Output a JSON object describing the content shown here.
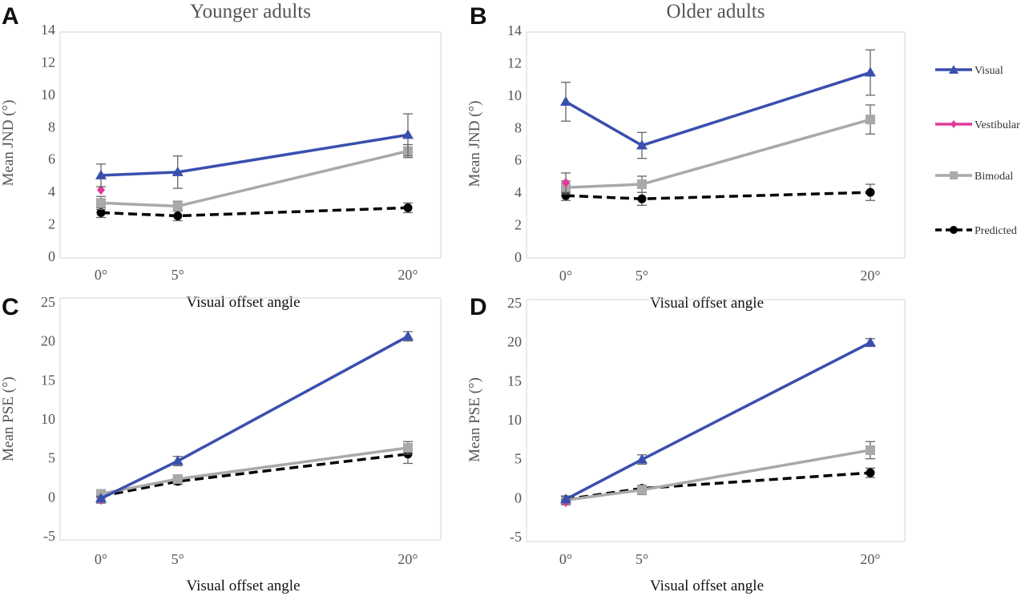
{
  "figure": {
    "legend": [
      {
        "name": "Visual",
        "color": "#3a4fae",
        "marker": "triangle",
        "dash": "solid"
      },
      {
        "name": "Vestibular",
        "color": "#e0399a",
        "marker": "diamond",
        "dash": "solid"
      },
      {
        "name": "Bimodal",
        "color": "#a9a9a9",
        "marker": "square",
        "dash": "solid"
      },
      {
        "name": "Predicted",
        "color": "#000000",
        "marker": "circle",
        "dash": "dashed"
      }
    ],
    "legend_placement": "right"
  },
  "chart_data": [
    {
      "panel": "A",
      "type": "line",
      "title": "Younger adults",
      "xlabel": "Visual offset angle",
      "ylabel": "Mean JND (°)",
      "categories": [
        "0°",
        "5°",
        "20°"
      ],
      "x": [
        0,
        5,
        20
      ],
      "ylim": [
        0,
        14
      ],
      "yticks": [
        0,
        2,
        4,
        6,
        8,
        10,
        12,
        14
      ],
      "series": [
        {
          "name": "Visual",
          "x": [
            0,
            5,
            20
          ],
          "values": [
            5.0,
            5.2,
            7.5
          ],
          "err": [
            0.7,
            1.0,
            1.3
          ]
        },
        {
          "name": "Vestibular",
          "x": [
            0
          ],
          "values": [
            4.1
          ],
          "err": [
            0
          ]
        },
        {
          "name": "Bimodal",
          "x": [
            0,
            5,
            20
          ],
          "values": [
            3.3,
            3.1,
            6.5
          ],
          "err": [
            0.4,
            0.3,
            0.4
          ]
        },
        {
          "name": "Predicted",
          "x": [
            0,
            5,
            20
          ],
          "values": [
            2.7,
            2.5,
            3.0
          ],
          "err": [
            0.3,
            0.3,
            0.3
          ]
        }
      ]
    },
    {
      "panel": "B",
      "type": "line",
      "title": "Older adults",
      "xlabel": "Visual offset angle",
      "ylabel": "Mean JND (°)",
      "categories": [
        "0°",
        "5°",
        "20°"
      ],
      "x": [
        0,
        5,
        20
      ],
      "ylim": [
        0,
        14
      ],
      "yticks": [
        0,
        2,
        4,
        6,
        8,
        10,
        12,
        14
      ],
      "series": [
        {
          "name": "Visual",
          "x": [
            0,
            5,
            20
          ],
          "values": [
            9.6,
            6.9,
            11.4
          ],
          "err": [
            1.2,
            0.8,
            1.4
          ]
        },
        {
          "name": "Vestibular",
          "x": [
            0
          ],
          "values": [
            4.6
          ],
          "err": [
            0.6
          ]
        },
        {
          "name": "Bimodal",
          "x": [
            0,
            5,
            20
          ],
          "values": [
            4.3,
            4.5,
            8.5
          ],
          "err": [
            0.4,
            0.5,
            0.9
          ]
        },
        {
          "name": "Predicted",
          "x": [
            0,
            5,
            20
          ],
          "values": [
            3.8,
            3.6,
            4.0
          ],
          "err": [
            0.3,
            0.4,
            0.5
          ]
        }
      ]
    },
    {
      "panel": "C",
      "type": "line",
      "title": "",
      "xlabel": "Visual offset angle",
      "ylabel": "Mean PSE (°)",
      "categories": [
        "0°",
        "5°",
        "20°"
      ],
      "x": [
        0,
        5,
        20
      ],
      "ylim": [
        -5,
        25
      ],
      "yticks": [
        -5,
        0,
        5,
        10,
        15,
        20,
        25
      ],
      "series": [
        {
          "name": "Visual",
          "x": [
            0,
            5,
            20
          ],
          "values": [
            -0.2,
            4.6,
            20.6
          ],
          "err": [
            0.3,
            0.6,
            0.6
          ]
        },
        {
          "name": "Vestibular",
          "x": [
            0
          ],
          "values": [
            -0.4
          ],
          "err": [
            0.4
          ]
        },
        {
          "name": "Bimodal",
          "x": [
            0,
            5,
            20
          ],
          "values": [
            0.4,
            2.3,
            6.3
          ],
          "err": [
            0.4,
            0.5,
            0.8
          ]
        },
        {
          "name": "Predicted",
          "x": [
            0,
            5,
            20
          ],
          "values": [
            0.1,
            2.0,
            5.5
          ],
          "err": [
            0.3,
            0.4,
            1.2
          ]
        }
      ]
    },
    {
      "panel": "D",
      "type": "line",
      "title": "",
      "xlabel": "Visual offset angle",
      "ylabel": "Mean PSE (°)",
      "categories": [
        "0°",
        "5°",
        "20°"
      ],
      "x": [
        0,
        5,
        20
      ],
      "ylim": [
        -5,
        25
      ],
      "yticks": [
        -5,
        0,
        5,
        10,
        15,
        20,
        25
      ],
      "series": [
        {
          "name": "Visual",
          "x": [
            0,
            5,
            20
          ],
          "values": [
            -0.2,
            4.9,
            19.9
          ],
          "err": [
            0.4,
            0.6,
            0.5
          ]
        },
        {
          "name": "Vestibular",
          "x": [
            0
          ],
          "values": [
            -0.6
          ],
          "err": [
            0.3
          ]
        },
        {
          "name": "Bimodal",
          "x": [
            0,
            5,
            20
          ],
          "values": [
            -0.3,
            1.0,
            6.1
          ],
          "err": [
            0.4,
            0.6,
            1.1
          ]
        },
        {
          "name": "Predicted",
          "x": [
            0,
            5,
            20
          ],
          "values": [
            -0.2,
            1.2,
            3.2
          ],
          "err": [
            0.2,
            0.3,
            0.6
          ]
        }
      ]
    }
  ]
}
